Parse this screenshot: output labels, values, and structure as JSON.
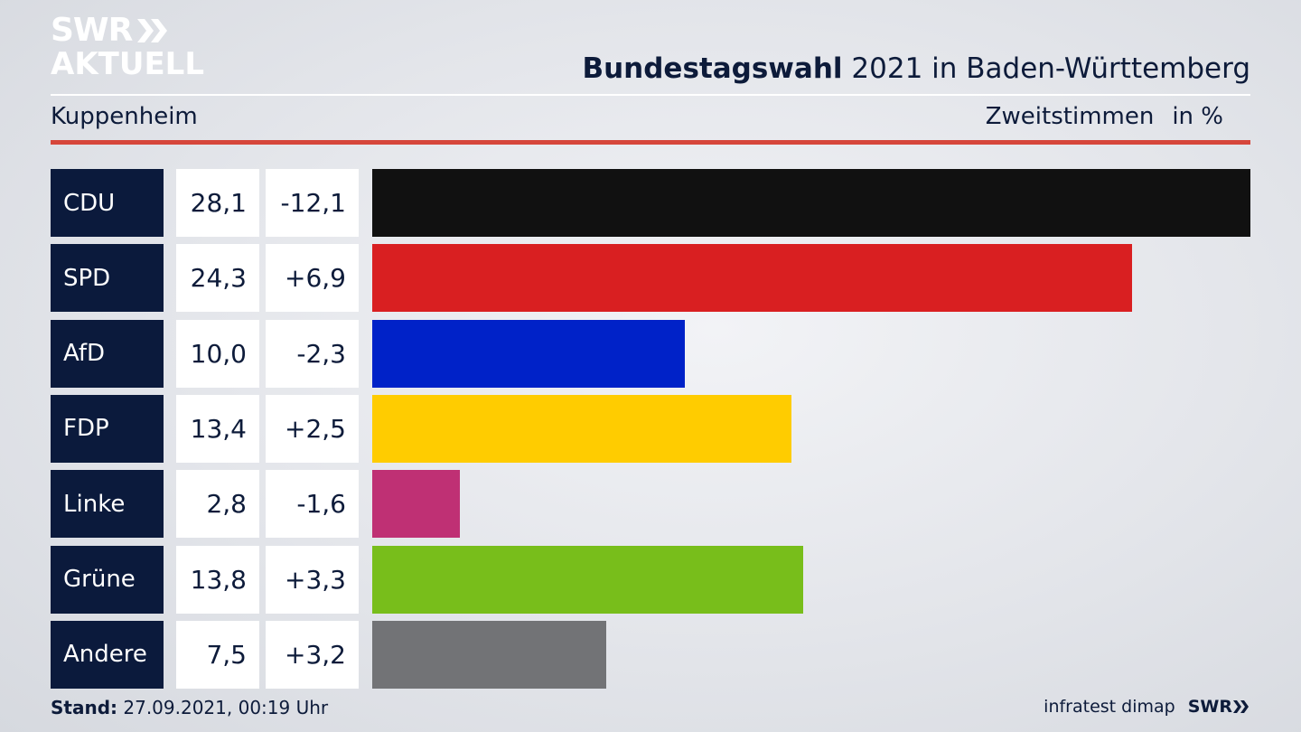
{
  "logo": {
    "line1": "SWR",
    "line2": "AKTUELL"
  },
  "header": {
    "title_bold": "Bundestagswahl",
    "title_rest": " 2021 in Baden-Württemberg",
    "subtitle": "Kuppenheim",
    "measure": "Zweitstimmen",
    "unit": "in %"
  },
  "chart_data": {
    "type": "bar",
    "orientation": "horizontal",
    "title": "Bundestagswahl 2021 in Baden-Württemberg",
    "subtitle": "Kuppenheim",
    "categories": [
      "CDU",
      "SPD",
      "AfD",
      "FDP",
      "Linke",
      "Grüne",
      "Andere"
    ],
    "values": [
      28.1,
      24.3,
      10.0,
      13.4,
      2.8,
      13.8,
      7.5
    ],
    "value_labels": [
      "28,1",
      "24,3",
      "10,0",
      "13,4",
      "2,8",
      "13,8",
      "7,5"
    ],
    "change_labels": [
      "-12,1",
      "+6,9",
      "-2,3",
      "+2,5",
      "-1,6",
      "+3,3",
      "+3,2"
    ],
    "colors": [
      "#111111",
      "#d91f21",
      "#0022c8",
      "#ffcc00",
      "#bf3074",
      "#78be1b",
      "#727376"
    ],
    "xlim": [
      0,
      28.1
    ],
    "grid": false,
    "legend": "none"
  },
  "footer": {
    "stand_label": "Stand:",
    "stand_value": " 27.09.2021, 00:19 Uhr",
    "source": "infratest dimap",
    "brand": "SWR"
  }
}
